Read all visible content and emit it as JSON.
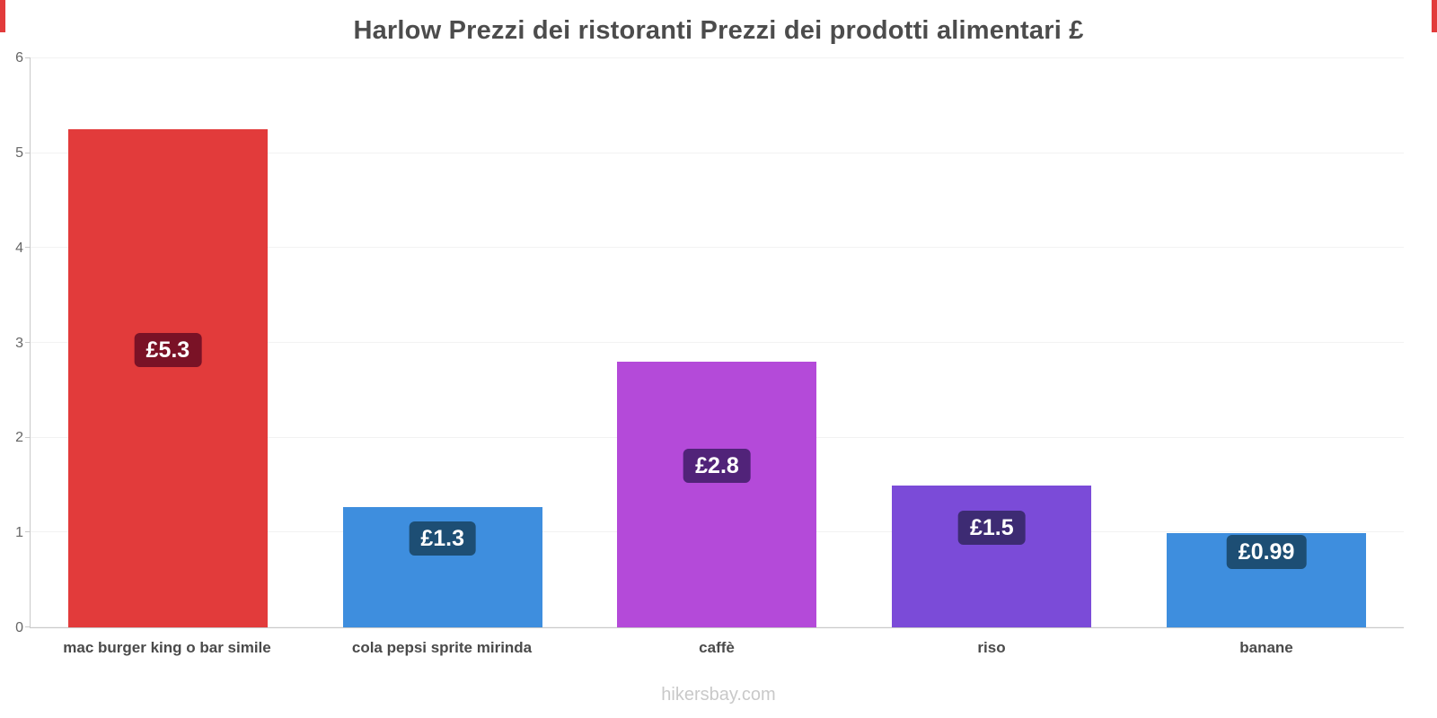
{
  "page": {
    "title": "Harlow Prezzi dei ristoranti Prezzi dei prodotti alimentari £",
    "footer": "hikersbay.com",
    "accent_color": "#e23b3b"
  },
  "chart_data": {
    "type": "bar",
    "title": "Harlow Prezzi dei ristoranti Prezzi dei prodotti alimentari £",
    "categories": [
      "mac burger king o bar simile",
      "cola pepsi sprite mirinda",
      "caffè",
      "riso",
      "banane"
    ],
    "values": [
      5.25,
      1.27,
      2.8,
      1.5,
      0.99
    ],
    "value_labels": [
      "£5.3",
      "£1.3",
      "£2.8",
      "£1.5",
      "£0.99"
    ],
    "bar_colors": [
      "#e23b3b",
      "#3e8ede",
      "#b44ad9",
      "#7b4bd8",
      "#3e8ede"
    ],
    "label_bg_colors": [
      "#7a1226",
      "#1d4e74",
      "#512379",
      "#3d2b73",
      "#1d4e74"
    ],
    "xlabel": "",
    "ylabel": "",
    "ylim": [
      0,
      6
    ],
    "yticks": [
      0,
      1,
      2,
      3,
      4,
      5,
      6
    ],
    "grid": "horizontal-faint",
    "legend": "none",
    "currency": "£"
  }
}
